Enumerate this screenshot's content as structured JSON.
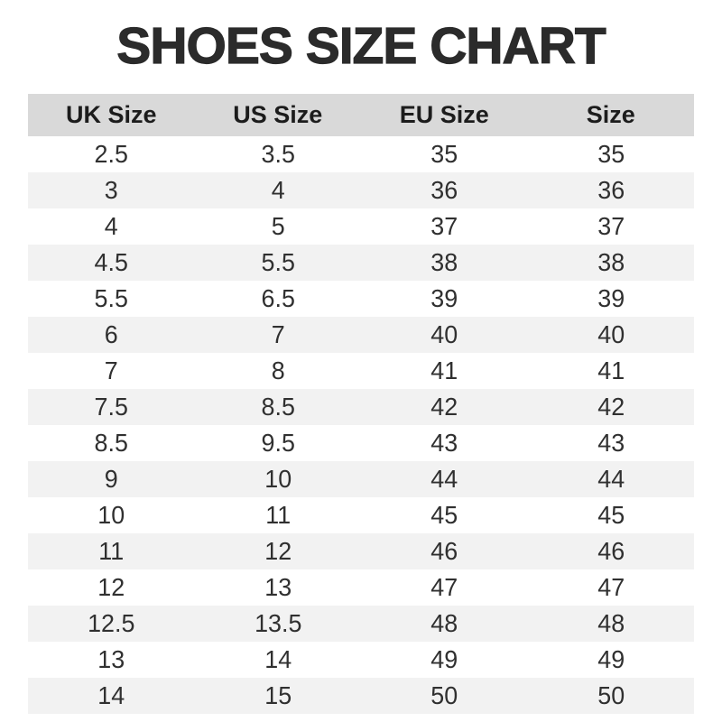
{
  "title": "SHOES SIZE CHART",
  "colors": {
    "title_text": "#2b2b2b",
    "header_bg": "#d9d9d9",
    "row_alt_bg": "#f2f2f2",
    "row_bg": "#ffffff",
    "cell_text": "#303030"
  },
  "table": {
    "headers": [
      "UK Size",
      "US Size",
      "EU Size",
      "Size"
    ]
  },
  "chart_data": {
    "type": "table",
    "title": "SHOES SIZE CHART",
    "columns": [
      "UK Size",
      "US Size",
      "EU Size",
      "Size"
    ],
    "rows": [
      [
        "2.5",
        "3.5",
        "35",
        "35"
      ],
      [
        "3",
        "4",
        "36",
        "36"
      ],
      [
        "4",
        "5",
        "37",
        "37"
      ],
      [
        "4.5",
        "5.5",
        "38",
        "38"
      ],
      [
        "5.5",
        "6.5",
        "39",
        "39"
      ],
      [
        "6",
        "7",
        "40",
        "40"
      ],
      [
        "7",
        "8",
        "41",
        "41"
      ],
      [
        "7.5",
        "8.5",
        "42",
        "42"
      ],
      [
        "8.5",
        "9.5",
        "43",
        "43"
      ],
      [
        "9",
        "10",
        "44",
        "44"
      ],
      [
        "10",
        "11",
        "45",
        "45"
      ],
      [
        "11",
        "12",
        "46",
        "46"
      ],
      [
        "12",
        "13",
        "47",
        "47"
      ],
      [
        "12.5",
        "13.5",
        "48",
        "48"
      ],
      [
        "13",
        "14",
        "49",
        "49"
      ],
      [
        "14",
        "15",
        "50",
        "50"
      ]
    ],
    "layout": {
      "header_background": "#d9d9d9",
      "zebra_striping": true,
      "stripe_starts_on": "second_data_row",
      "grid": false,
      "alignment": "center"
    }
  }
}
